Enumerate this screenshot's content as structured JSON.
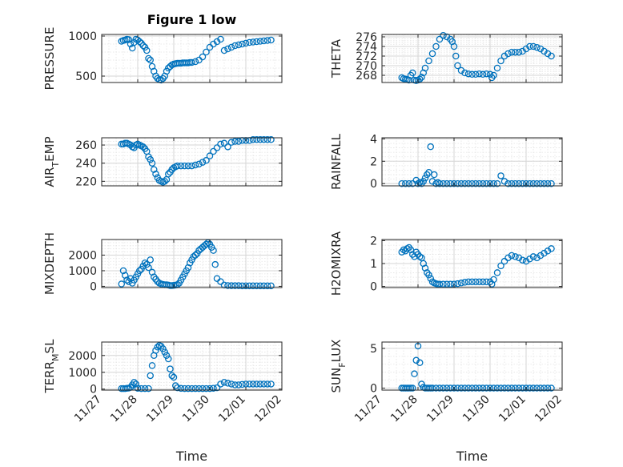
{
  "figure": {
    "title": "Figure 1 low",
    "time_label": "Time",
    "x_ticks": [
      "11/27",
      "11/28",
      "11/29",
      "11/30",
      "12/01",
      "12/02"
    ],
    "x_range": [
      "2015-11-27",
      "2015-12-02"
    ],
    "marker_color": "#0072BD"
  },
  "chart_data": [
    {
      "type": "scatter",
      "title": "Figure 1 low",
      "ylabel": "PRESSURE",
      "ylim": [
        420,
        1020
      ],
      "yticks": [
        500,
        1000
      ],
      "ylabel_parts": null,
      "x": [
        0.55,
        0.6,
        0.65,
        0.7,
        0.75,
        0.8,
        0.85,
        0.9,
        0.95,
        1.0,
        1.05,
        1.1,
        1.15,
        1.2,
        1.25,
        1.3,
        1.35,
        1.4,
        1.45,
        1.5,
        1.55,
        1.6,
        1.65,
        1.7,
        1.75,
        1.8,
        1.85,
        1.9,
        1.95,
        2.0,
        2.05,
        2.1,
        2.15,
        2.2,
        2.25,
        2.3,
        2.35,
        2.4,
        2.45,
        2.5,
        2.6,
        2.7,
        2.8,
        2.9,
        3.0,
        3.1,
        3.2,
        3.3,
        3.4,
        3.5,
        3.6,
        3.7,
        3.8,
        3.9,
        4.0,
        4.1,
        4.2,
        4.3,
        4.4,
        4.5,
        4.6,
        4.7
      ],
      "y": [
        935,
        945,
        950,
        960,
        955,
        900,
        850,
        920,
        960,
        950,
        930,
        910,
        880,
        860,
        820,
        720,
        700,
        620,
        560,
        500,
        470,
        455,
        450,
        470,
        500,
        560,
        600,
        620,
        640,
        650,
        655,
        660,
        660,
        660,
        665,
        665,
        665,
        665,
        670,
        670,
        680,
        700,
        740,
        800,
        860,
        900,
        930,
        960,
        820,
        840,
        860,
        880,
        890,
        900,
        910,
        920,
        925,
        930,
        935,
        940,
        945,
        950
      ]
    },
    {
      "type": "scatter",
      "ylabel": "THETA",
      "ylim": [
        266.5,
        276.5
      ],
      "yticks": [
        268,
        270,
        272,
        274,
        276
      ],
      "x": [
        0.55,
        0.6,
        0.65,
        0.7,
        0.75,
        0.8,
        0.85,
        0.9,
        0.95,
        1.0,
        1.05,
        1.1,
        1.15,
        1.2,
        1.3,
        1.4,
        1.5,
        1.6,
        1.7,
        1.8,
        1.9,
        1.95,
        2.0,
        2.05,
        2.1,
        2.2,
        2.3,
        2.4,
        2.5,
        2.6,
        2.7,
        2.8,
        2.9,
        3.0,
        3.05,
        3.1,
        3.2,
        3.3,
        3.4,
        3.5,
        3.6,
        3.7,
        3.8,
        3.9,
        4.0,
        4.1,
        4.2,
        4.3,
        4.4,
        4.5,
        4.6,
        4.7
      ],
      "y": [
        267.5,
        267.3,
        267.2,
        267.1,
        267.0,
        268.0,
        268.5,
        267.0,
        266.9,
        267.0,
        267.2,
        267.6,
        268.5,
        269.5,
        271.0,
        272.5,
        274.0,
        275.5,
        276.3,
        276.0,
        275.5,
        275.0,
        274.0,
        272.0,
        270.0,
        269.0,
        268.5,
        268.3,
        268.2,
        268.2,
        268.3,
        268.2,
        268.3,
        268.2,
        267.5,
        268.0,
        269.5,
        271.0,
        272.0,
        272.5,
        272.8,
        272.8,
        272.8,
        273.0,
        273.5,
        274.0,
        274.0,
        273.8,
        273.5,
        273.0,
        272.5,
        272.0
      ]
    },
    {
      "type": "scatter",
      "ylabel": "AIR_TEMP",
      "ylabel_parts": [
        "AIR",
        "T",
        "EMP"
      ],
      "ylim": [
        215,
        268
      ],
      "yticks": [
        220,
        240,
        260
      ],
      "x": [
        0.55,
        0.6,
        0.65,
        0.7,
        0.75,
        0.8,
        0.85,
        0.9,
        0.95,
        1.0,
        1.05,
        1.1,
        1.15,
        1.2,
        1.25,
        1.3,
        1.35,
        1.4,
        1.45,
        1.5,
        1.55,
        1.6,
        1.65,
        1.7,
        1.75,
        1.8,
        1.85,
        1.9,
        1.95,
        2.0,
        2.05,
        2.1,
        2.2,
        2.3,
        2.4,
        2.5,
        2.6,
        2.7,
        2.8,
        2.9,
        3.0,
        3.1,
        3.2,
        3.3,
        3.4,
        3.5,
        3.6,
        3.7,
        3.8,
        3.9,
        4.0,
        4.1,
        4.2,
        4.3,
        4.4,
        4.5,
        4.6,
        4.7
      ],
      "y": [
        261,
        261,
        262,
        262,
        261,
        260,
        258,
        257,
        260,
        261,
        260,
        259,
        258,
        256,
        253,
        247,
        244,
        240,
        233,
        228,
        224,
        221,
        220,
        219,
        220,
        222,
        228,
        230,
        233,
        235,
        236,
        237,
        237,
        237,
        237,
        237,
        238,
        239,
        241,
        243,
        248,
        253,
        257,
        261,
        262,
        258,
        263,
        264,
        264,
        265,
        265,
        265,
        266,
        266,
        266,
        266,
        266,
        266
      ]
    },
    {
      "type": "scatter",
      "ylabel": "RAINFALL",
      "ylim": [
        -0.2,
        4.1
      ],
      "yticks": [
        0,
        2,
        4
      ],
      "x": [
        0.55,
        0.65,
        0.75,
        0.85,
        0.95,
        1.0,
        1.05,
        1.1,
        1.15,
        1.2,
        1.25,
        1.3,
        1.35,
        1.4,
        1.45,
        1.5,
        1.55,
        1.6,
        1.7,
        1.8,
        1.9,
        2.0,
        2.1,
        2.2,
        2.3,
        2.4,
        2.5,
        2.6,
        2.7,
        2.8,
        2.9,
        3.0,
        3.1,
        3.2,
        3.3,
        3.4,
        3.5,
        3.6,
        3.7,
        3.8,
        3.9,
        4.0,
        4.1,
        4.2,
        4.3,
        4.4,
        4.5,
        4.6,
        4.7
      ],
      "y": [
        0,
        0,
        0,
        0,
        0.3,
        0,
        0.1,
        0,
        0.2,
        0.5,
        0.8,
        1.0,
        3.3,
        0.2,
        0.8,
        0,
        0.1,
        0,
        0,
        0,
        0,
        0,
        0,
        0,
        0,
        0,
        0,
        0,
        0,
        0,
        0,
        0,
        0,
        0,
        0.7,
        0.2,
        0,
        0,
        0,
        0,
        0,
        0,
        0,
        0,
        0,
        0,
        0,
        0,
        0
      ]
    },
    {
      "type": "scatter",
      "ylabel": "MIXDEPTH",
      "ylim": [
        -80,
        3000
      ],
      "yticks": [
        0,
        1000,
        2000
      ],
      "x": [
        0.55,
        0.6,
        0.65,
        0.7,
        0.75,
        0.8,
        0.85,
        0.9,
        0.95,
        1.0,
        1.05,
        1.1,
        1.15,
        1.2,
        1.25,
        1.3,
        1.35,
        1.4,
        1.45,
        1.5,
        1.55,
        1.6,
        1.65,
        1.7,
        1.75,
        1.8,
        1.85,
        1.9,
        1.95,
        2.0,
        2.05,
        2.1,
        2.15,
        2.2,
        2.25,
        2.3,
        2.35,
        2.4,
        2.45,
        2.5,
        2.55,
        2.6,
        2.65,
        2.7,
        2.75,
        2.8,
        2.85,
        2.9,
        2.95,
        3.0,
        3.05,
        3.1,
        3.15,
        3.2,
        3.3,
        3.4,
        3.5,
        3.6,
        3.7,
        3.8,
        3.9,
        4.0,
        4.1,
        4.2,
        4.3,
        4.4,
        4.5,
        4.6,
        4.7
      ],
      "y": [
        150,
        1000,
        700,
        400,
        300,
        500,
        200,
        400,
        600,
        800,
        1000,
        1100,
        1300,
        1500,
        1400,
        1200,
        1700,
        900,
        600,
        450,
        300,
        200,
        150,
        120,
        100,
        100,
        80,
        50,
        50,
        60,
        80,
        100,
        200,
        400,
        600,
        800,
        1000,
        1200,
        1500,
        1700,
        1900,
        2000,
        2100,
        2300,
        2400,
        2500,
        2600,
        2700,
        2800,
        2700,
        2500,
        2300,
        1400,
        500,
        300,
        80,
        50,
        40,
        40,
        40,
        30,
        30,
        30,
        30,
        30,
        30,
        30,
        30,
        30
      ]
    },
    {
      "type": "scatter",
      "ylabel": "H2OMIXRA",
      "ylim": [
        -0.05,
        2.05
      ],
      "yticks": [
        0,
        1,
        2
      ],
      "x": [
        0.55,
        0.6,
        0.65,
        0.7,
        0.75,
        0.8,
        0.85,
        0.9,
        0.95,
        1.0,
        1.05,
        1.1,
        1.15,
        1.2,
        1.25,
        1.3,
        1.35,
        1.4,
        1.45,
        1.5,
        1.55,
        1.6,
        1.7,
        1.8,
        1.9,
        2.0,
        2.1,
        2.2,
        2.3,
        2.4,
        2.5,
        2.6,
        2.7,
        2.8,
        2.9,
        3.0,
        3.05,
        3.1,
        3.2,
        3.3,
        3.4,
        3.5,
        3.6,
        3.7,
        3.8,
        3.9,
        4.0,
        4.1,
        4.2,
        4.3,
        4.4,
        4.5,
        4.6,
        4.7
      ],
      "y": [
        1.5,
        1.6,
        1.55,
        1.65,
        1.7,
        1.6,
        1.4,
        1.3,
        1.5,
        1.4,
        1.3,
        1.25,
        1.0,
        0.8,
        0.6,
        0.5,
        0.35,
        0.2,
        0.15,
        0.12,
        0.1,
        0.1,
        0.1,
        0.1,
        0.1,
        0.1,
        0.12,
        0.15,
        0.18,
        0.2,
        0.2,
        0.2,
        0.2,
        0.2,
        0.2,
        0.2,
        0.1,
        0.3,
        0.6,
        0.9,
        1.1,
        1.25,
        1.35,
        1.3,
        1.25,
        1.15,
        1.1,
        1.2,
        1.3,
        1.25,
        1.35,
        1.45,
        1.55,
        1.65
      ]
    },
    {
      "type": "scatter",
      "ylabel": "TERR_MSL",
      "ylabel_parts": [
        "TERR",
        "M",
        "SL"
      ],
      "ylim": [
        -60,
        2800
      ],
      "yticks": [
        0,
        1000,
        2000
      ],
      "x": [
        0.55,
        0.6,
        0.65,
        0.7,
        0.75,
        0.8,
        0.85,
        0.9,
        0.95,
        1.0,
        1.1,
        1.2,
        1.3,
        1.35,
        1.4,
        1.45,
        1.5,
        1.55,
        1.6,
        1.65,
        1.7,
        1.75,
        1.8,
        1.85,
        1.9,
        1.95,
        2.0,
        2.05,
        2.1,
        2.2,
        2.3,
        2.4,
        2.5,
        2.6,
        2.7,
        2.8,
        2.9,
        3.0,
        3.1,
        3.2,
        3.3,
        3.4,
        3.5,
        3.6,
        3.7,
        3.8,
        3.9,
        4.0,
        4.1,
        4.2,
        4.3,
        4.4,
        4.5,
        4.6,
        4.7
      ],
      "y": [
        30,
        30,
        30,
        50,
        60,
        100,
        250,
        400,
        300,
        50,
        30,
        30,
        30,
        800,
        1400,
        2000,
        2300,
        2500,
        2600,
        2550,
        2400,
        2200,
        2000,
        1800,
        1200,
        800,
        700,
        200,
        80,
        40,
        30,
        30,
        30,
        30,
        30,
        30,
        30,
        30,
        50,
        80,
        300,
        400,
        350,
        300,
        250,
        250,
        280,
        300,
        300,
        300,
        300,
        300,
        300,
        300,
        300
      ]
    },
    {
      "type": "scatter",
      "ylabel": "SUN_FLUX",
      "ylabel_parts": [
        "SUN",
        "F",
        "LUX"
      ],
      "ylim": [
        -0.25,
        5.8
      ],
      "yticks": [
        0,
        5
      ],
      "x": [
        0.55,
        0.6,
        0.65,
        0.7,
        0.75,
        0.8,
        0.85,
        0.9,
        0.95,
        1.0,
        1.05,
        1.1,
        1.15,
        1.2,
        1.25,
        1.3,
        1.35,
        1.4,
        1.5,
        1.6,
        1.7,
        1.8,
        1.9,
        2.0,
        2.1,
        2.2,
        2.3,
        2.4,
        2.5,
        2.6,
        2.7,
        2.8,
        2.9,
        3.0,
        3.1,
        3.2,
        3.3,
        3.4,
        3.5,
        3.6,
        3.7,
        3.8,
        3.9,
        4.0,
        4.1,
        4.2,
        4.3,
        4.4,
        4.5,
        4.6,
        4.7
      ],
      "y": [
        0,
        0,
        0,
        0,
        0,
        0,
        0,
        1.8,
        3.5,
        5.3,
        3.2,
        0.5,
        0.1,
        0,
        0,
        0,
        0,
        0,
        0,
        0,
        0,
        0,
        0,
        0,
        0,
        0,
        0,
        0,
        0,
        0,
        0,
        0,
        0,
        0,
        0,
        0,
        0,
        0,
        0,
        0,
        0,
        0,
        0,
        0,
        0,
        0,
        0,
        0,
        0,
        0,
        0
      ]
    }
  ]
}
